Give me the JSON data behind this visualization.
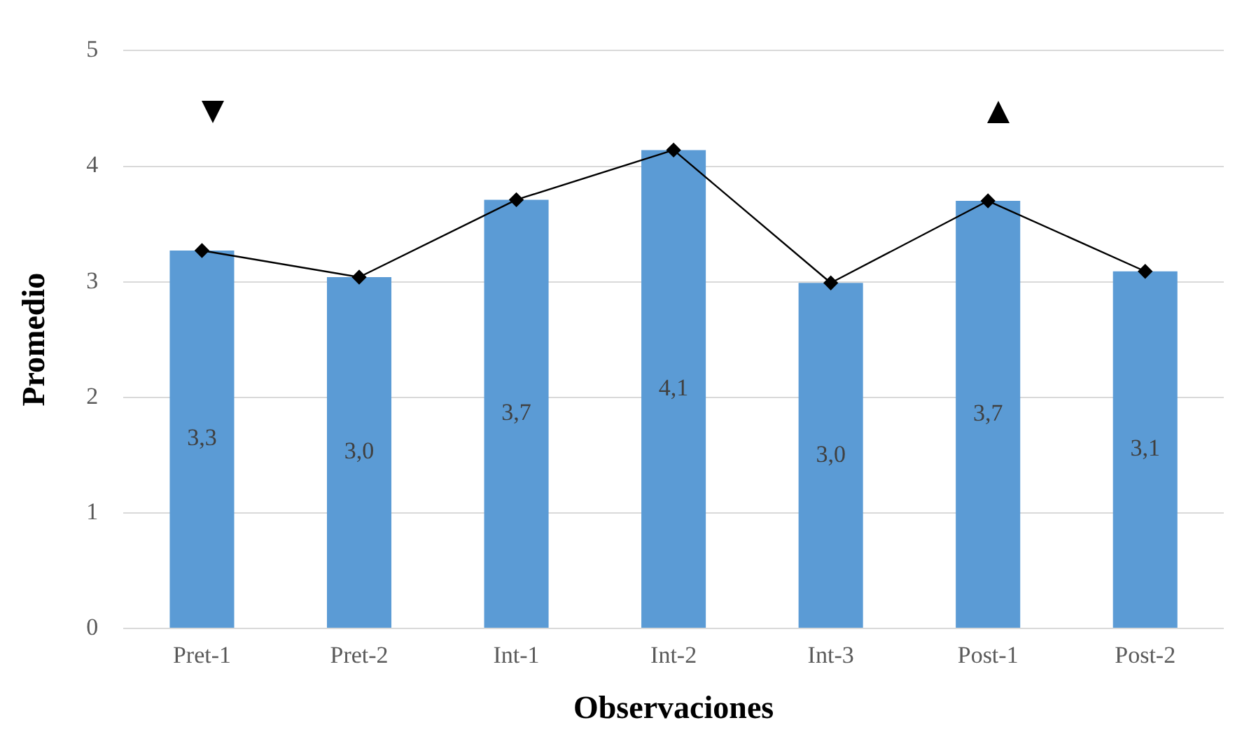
{
  "chart_data": {
    "type": "bar",
    "categories": [
      "Pret-1",
      "Pret-2",
      "Int-1",
      "Int-2",
      "Int-3",
      "Post-1",
      "Post-2"
    ],
    "series": [
      {
        "color": "#5b9bd5",
        "values": [
          3.27,
          3.04,
          3.71,
          4.14,
          2.99,
          3.7,
          3.09
        ],
        "value_labels": [
          "3,3",
          "3,0",
          "3,7",
          "4,1",
          "3,0",
          "3,7",
          "3,1"
        ]
      },
      {
        "type": "line",
        "color": "#000000",
        "marker": "diamond",
        "values": [
          3.27,
          3.04,
          3.71,
          4.14,
          2.99,
          3.7,
          3.09
        ]
      }
    ],
    "xlabel": "Observaciones",
    "ylabel": "Promedio",
    "ylim": [
      0,
      5
    ],
    "yticks": [
      0,
      1,
      2,
      3,
      4,
      5
    ],
    "grid": "y"
  }
}
